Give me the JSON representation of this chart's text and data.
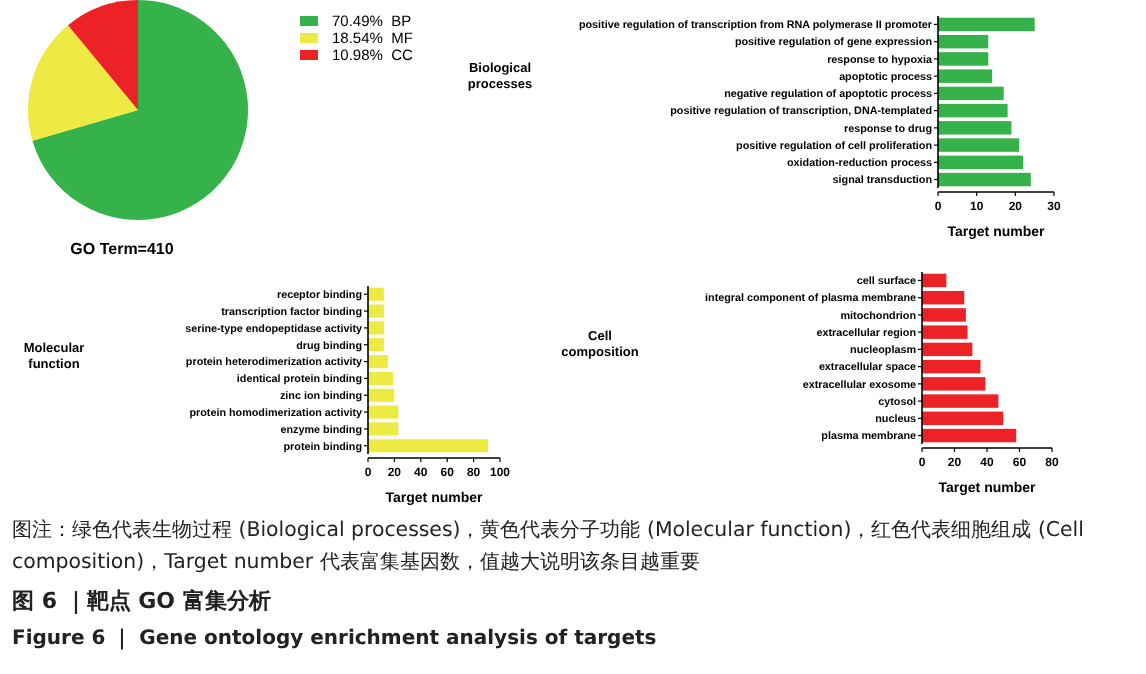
{
  "chart_data": [
    {
      "type": "pie",
      "title": "GO Term=410",
      "categories": [
        "70.49%  BP",
        "18.54%  MF",
        "10.98%  CC"
      ],
      "values": [
        70.49,
        18.54,
        10.98
      ],
      "colors": [
        "#35b24a",
        "#eeea44",
        "#ec2227"
      ],
      "legend": "right"
    },
    {
      "type": "bar",
      "orientation": "horizontal",
      "ylabel": "Biological processes",
      "xlabel": "Target number",
      "categories": [
        "positive regulation of transcription from RNA polymerase II promoter",
        "positive regulation of gene expression",
        "response to hypoxia",
        "apoptotic process",
        "negative regulation of apoptotic process",
        "positive regulation of transcription,  DNA-templated",
        "response to drug",
        "positive regulation of cell proliferation",
        "oxidation-reduction process",
        "signal transduction"
      ],
      "values": [
        25,
        13,
        13,
        14,
        17,
        18,
        19,
        21,
        22,
        24
      ],
      "color": "#35b24a",
      "xlim": [
        0,
        30
      ],
      "xticks": [
        0,
        10,
        20,
        30
      ]
    },
    {
      "type": "bar",
      "orientation": "horizontal",
      "ylabel": "Molecular function",
      "xlabel": "Target number",
      "categories": [
        "receptor binding",
        "transcription factor binding",
        "serine-type endopeptidase activity",
        "drug binding",
        "protein heterodimerization activity",
        "identical protein binding",
        "zinc ion binding",
        "protein homodimerization activity",
        "enzyme binding",
        "protein binding"
      ],
      "values": [
        12,
        12,
        12,
        12,
        15,
        19,
        20,
        23,
        23,
        91
      ],
      "color": "#eeea44",
      "xlim": [
        0,
        100
      ],
      "xticks": [
        0,
        20,
        40,
        60,
        80,
        100
      ]
    },
    {
      "type": "bar",
      "orientation": "horizontal",
      "ylabel": "Cell composition",
      "xlabel": "Target number",
      "categories": [
        "cell surface",
        "integral component of plasma membrane",
        "mitochondrion",
        "extracellular region",
        "nucleoplasm",
        "extracellular space",
        "extracellular exosome",
        "cytosol",
        "nucleus",
        "plasma membrane"
      ],
      "values": [
        15,
        26,
        27,
        28,
        31,
        36,
        39,
        47,
        50,
        58
      ],
      "color": "#ec2227",
      "xlim": [
        0,
        80
      ],
      "xticks": [
        0,
        20,
        40,
        60,
        80
      ]
    },
    {
      "type": "other",
      "annotations": [
        "图注：绿色代表生物过程 (Biological processes)，黄色代表分子功能 (Molecular function)，红色代表细胞组成 (Cell composition)，Target number 代表富集基因数，值越大说明该条目越重要",
        "图 6 ｜靶点 GO 富集分析",
        "Figure 6 ｜ Gene ontology enrichment analysis of targets"
      ]
    }
  ]
}
